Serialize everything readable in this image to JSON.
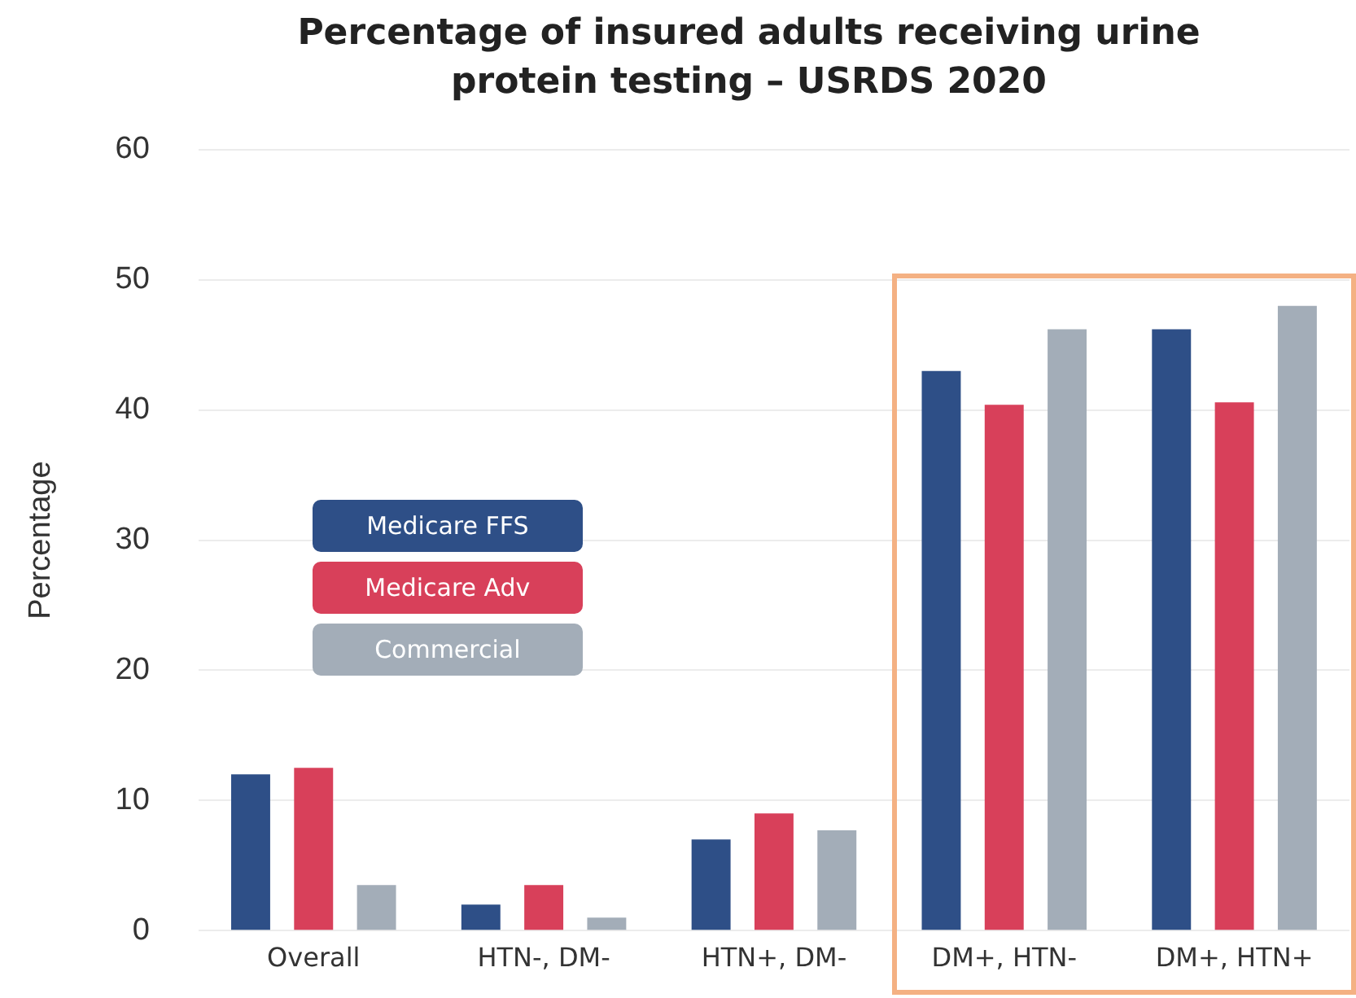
{
  "chart_data": {
    "type": "bar",
    "title": "Percentage of insured adults receiving urine protein testing – USRDS 2020",
    "ylabel": "Percentage",
    "categories": [
      "Overall",
      "HTN-, DM-",
      "HTN+, DM-",
      "DM+, HTN-",
      "DM+, HTN+"
    ],
    "series": [
      {
        "name": "Medicare FFS",
        "color": "#2e4f87",
        "values": [
          12,
          2,
          7,
          43,
          46.2
        ]
      },
      {
        "name": "Medicare Adv",
        "color": "#d8405a",
        "values": [
          12.5,
          3.5,
          9,
          40.4,
          40.6
        ]
      },
      {
        "name": "Commercial",
        "color": "#a3adb8",
        "values": [
          3.5,
          1,
          7.7,
          46.2,
          48
        ]
      }
    ],
    "ylim": [
      0,
      60
    ],
    "yticks": [
      0,
      10,
      20,
      30,
      40,
      50,
      60
    ],
    "grid": "y",
    "legend": "left"
  }
}
